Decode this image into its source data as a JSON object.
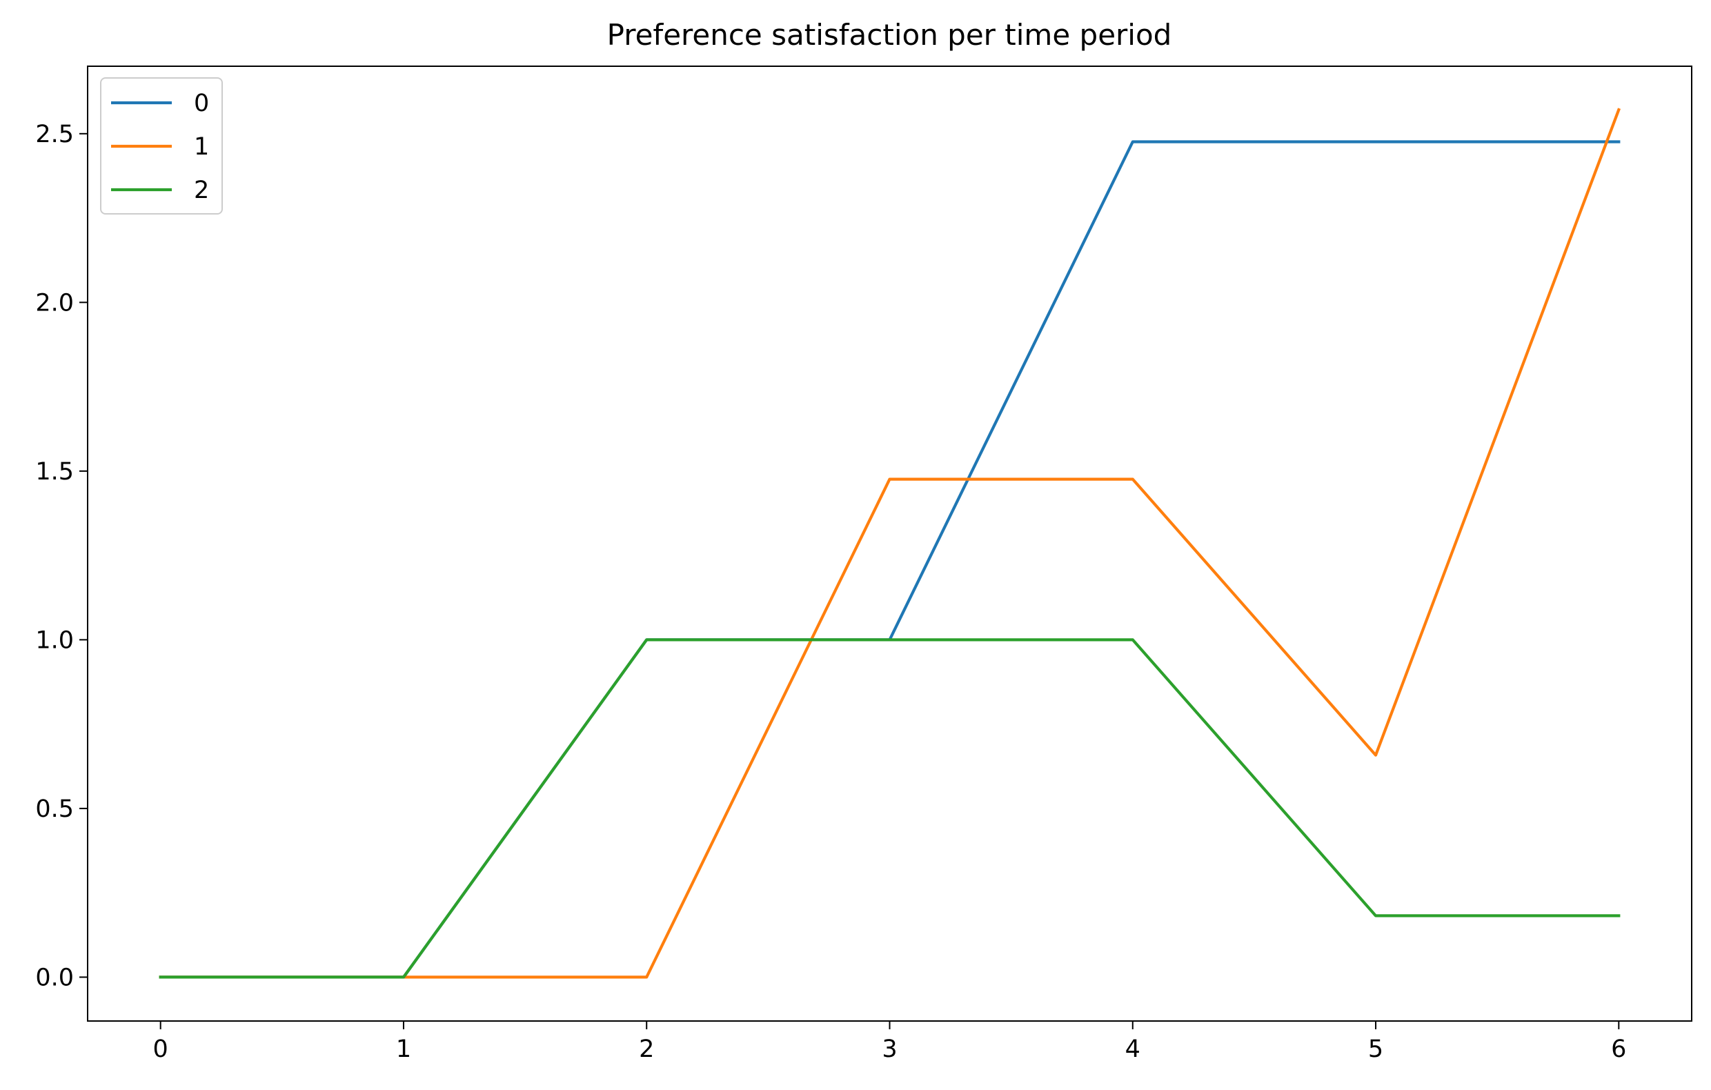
{
  "chart_data": {
    "type": "line",
    "title": "Preference satisfaction per time period",
    "xlabel": "",
    "ylabel": "",
    "x": [
      0,
      1,
      2,
      3,
      4,
      5,
      6
    ],
    "xlim": [
      -0.3,
      6.3
    ],
    "ylim": [
      -0.13,
      2.7
    ],
    "x_ticks": [
      0,
      1,
      2,
      3,
      4,
      5,
      6
    ],
    "y_ticks": [
      0.0,
      0.5,
      1.0,
      1.5,
      2.0,
      2.5
    ],
    "x_tick_labels": [
      "0",
      "1",
      "2",
      "3",
      "4",
      "5",
      "6"
    ],
    "y_tick_labels": [
      "0.0",
      "0.5",
      "1.0",
      "1.5",
      "2.0",
      "2.5"
    ],
    "grid": false,
    "legend_position": "upper left",
    "series": [
      {
        "name": "0",
        "color": "#1f77b4",
        "values": [
          0,
          0,
          1.0,
          1.0,
          2.476,
          2.476,
          2.476
        ]
      },
      {
        "name": "1",
        "color": "#ff7f0e",
        "values": [
          0,
          0,
          0,
          1.476,
          1.476,
          0.658,
          2.571
        ]
      },
      {
        "name": "2",
        "color": "#2ca02c",
        "values": [
          0,
          0,
          1.0,
          1.0,
          1.0,
          0.182,
          0.182
        ]
      }
    ]
  }
}
